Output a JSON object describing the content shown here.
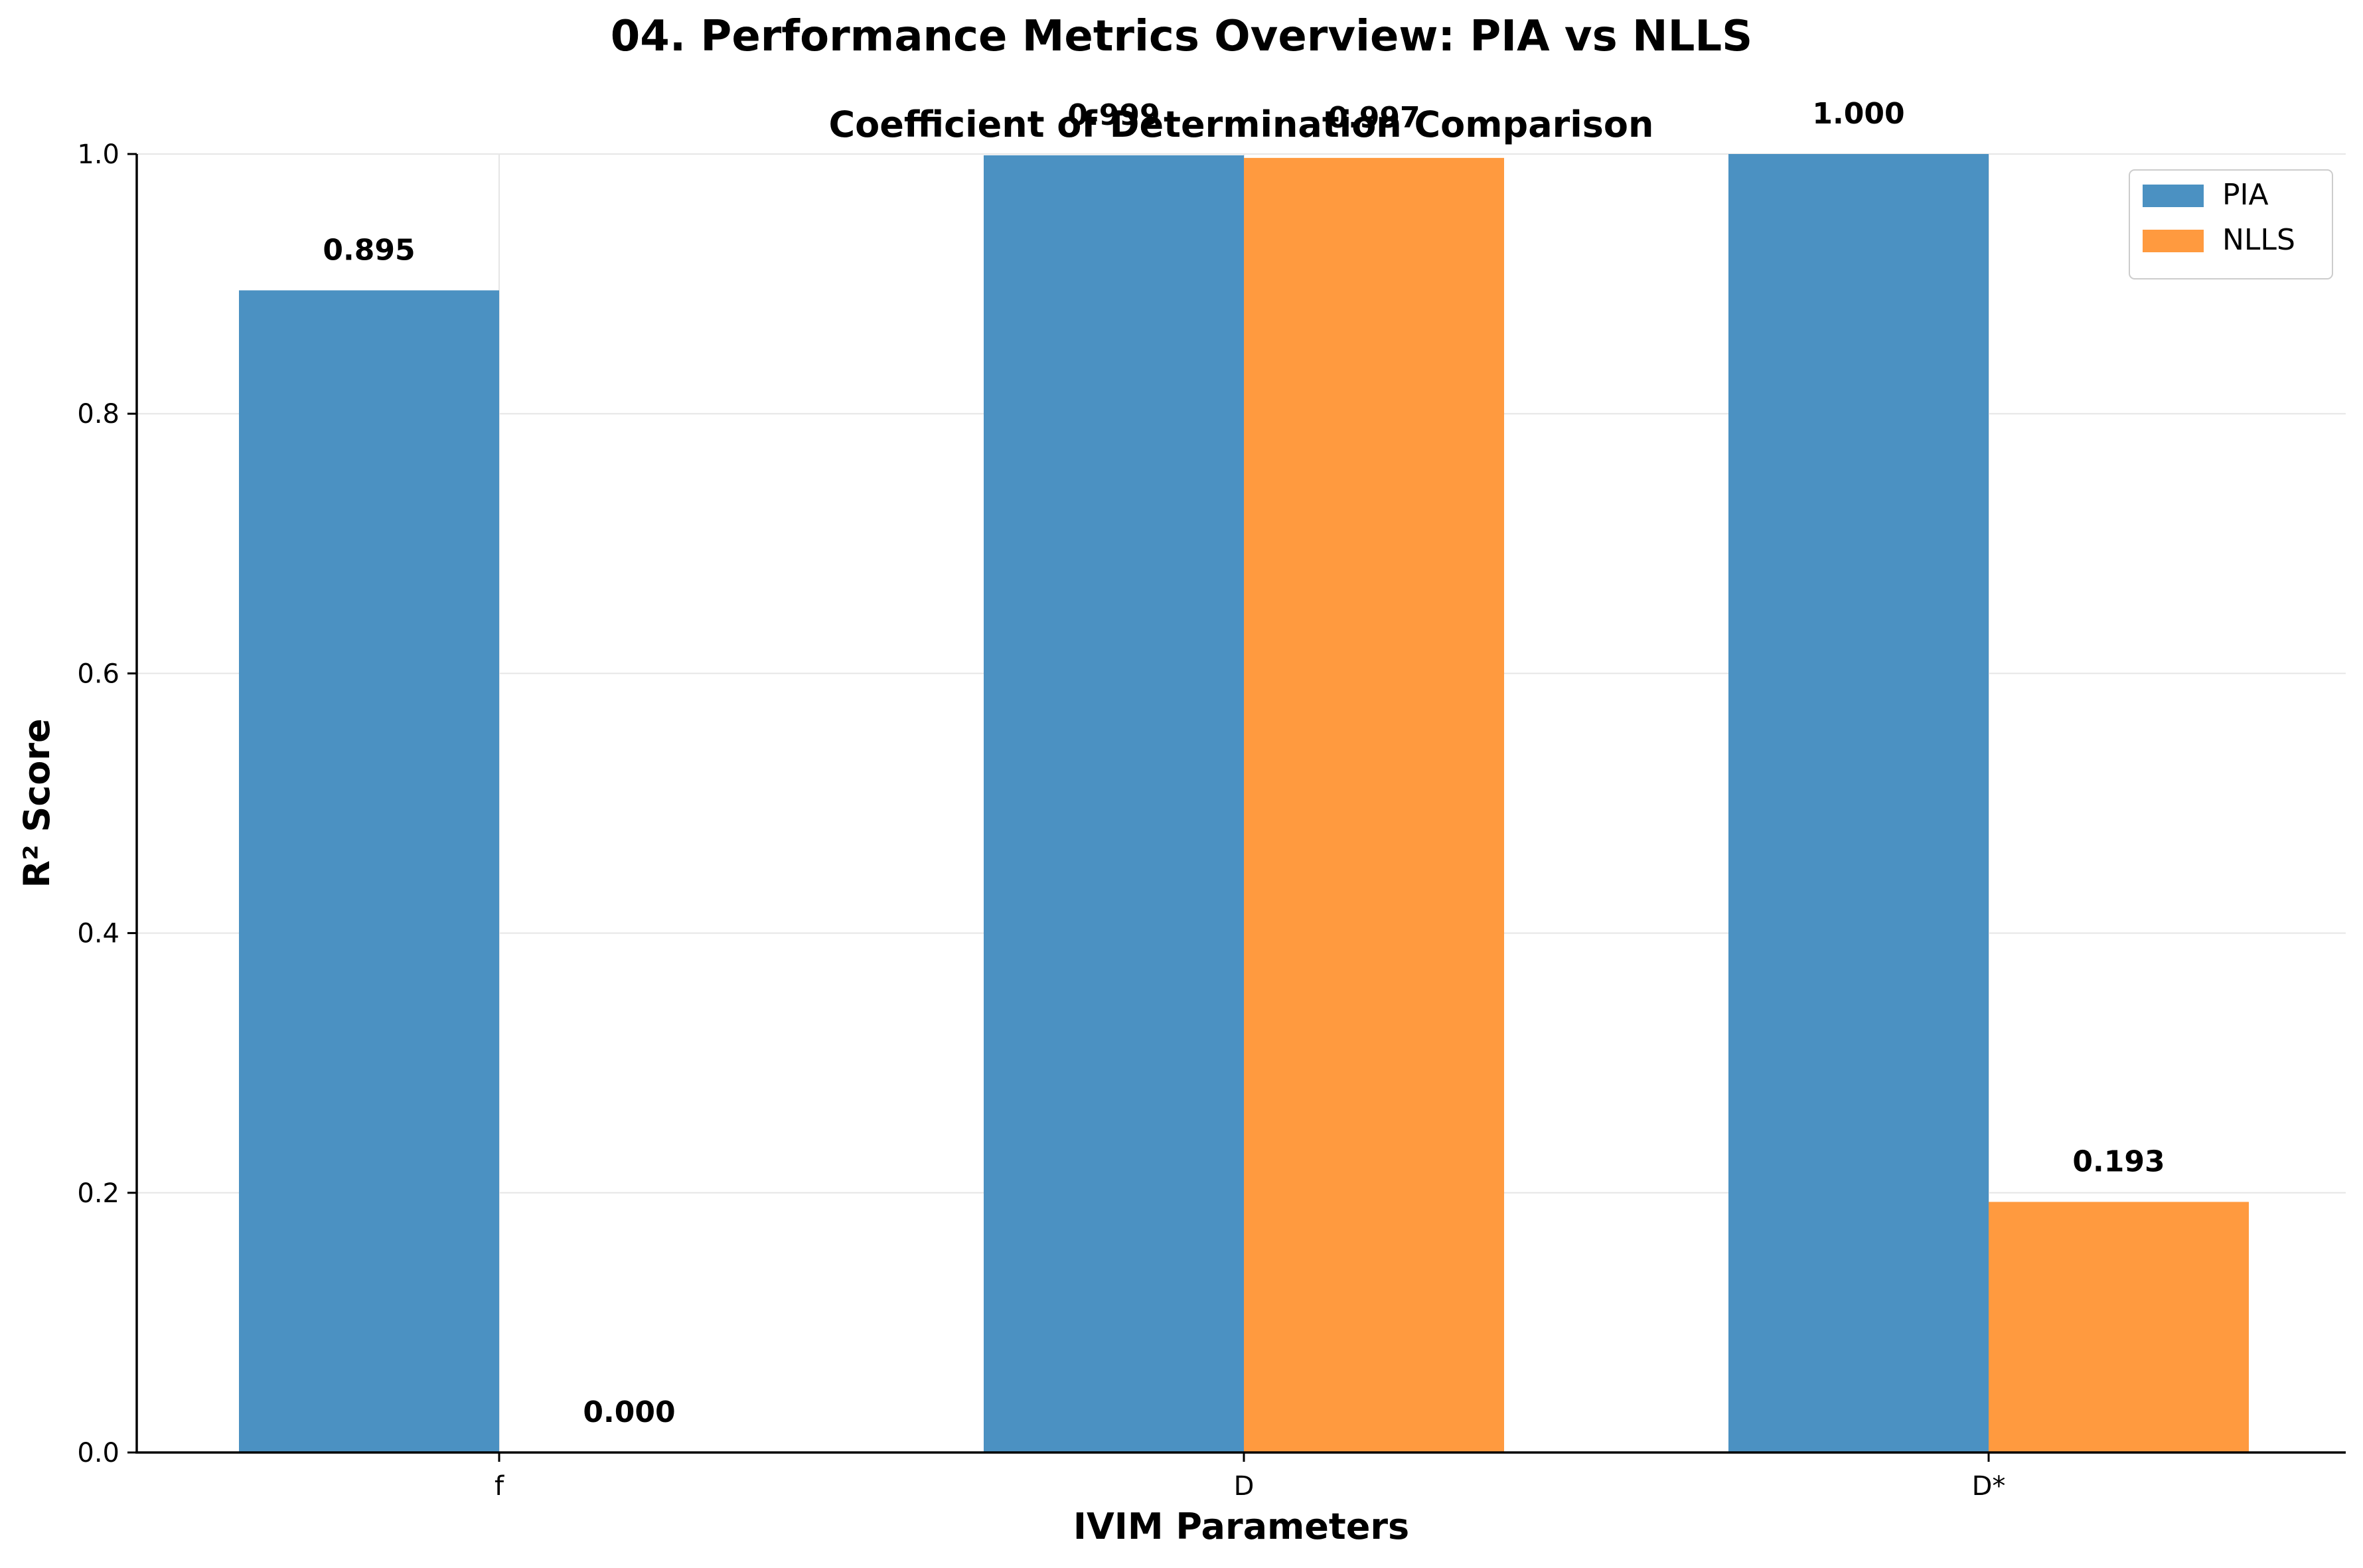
{
  "chart_data": {
    "type": "bar",
    "suptitle": "04. Performance Metrics Overview: PIA vs NLLS",
    "title": "Coefficient of Determination Comparison",
    "xlabel": "IVIM Parameters",
    "ylabel": "R² Score",
    "categories": [
      "f",
      "D",
      "D*"
    ],
    "series": [
      {
        "name": "PIA",
        "values": [
          0.895,
          0.999,
          1.0
        ],
        "labels": [
          "0.895",
          "0.999",
          "1.000"
        ],
        "color": "#4b91c2"
      },
      {
        "name": "NLLS",
        "values": [
          0.0,
          0.997,
          0.193
        ],
        "labels": [
          "0.000",
          "0.997",
          "0.193"
        ],
        "color": "#ff9a3f"
      }
    ],
    "ylim": [
      0,
      1.0
    ],
    "yticks": [
      0.0,
      0.2,
      0.4,
      0.6,
      0.8,
      1.0
    ],
    "ytick_labels": [
      "0.0",
      "0.2",
      "0.4",
      "0.6",
      "0.8",
      "1.0"
    ],
    "grid": true,
    "legend_position": "top-right"
  }
}
